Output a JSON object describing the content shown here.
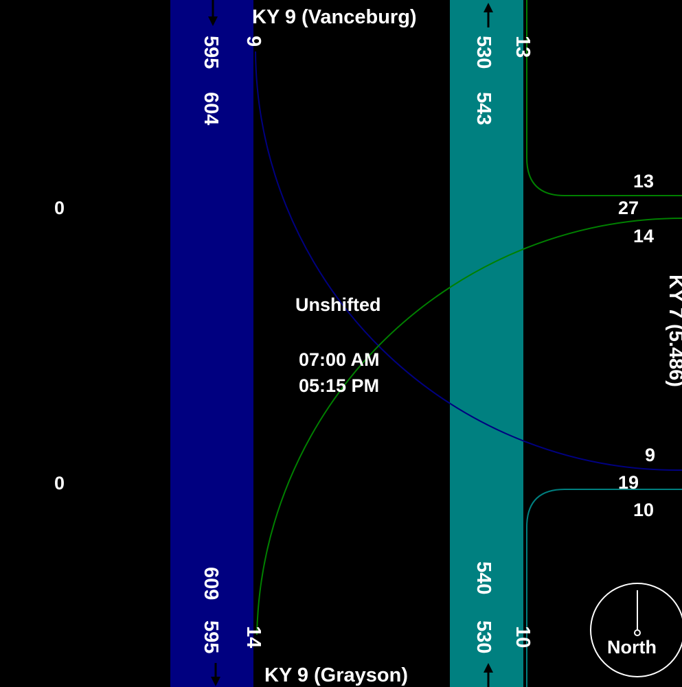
{
  "roads": {
    "north": "KY 9 (Vanceburg)",
    "south": "KY 9 (Grayson)",
    "east": "KY 7 (5.486)"
  },
  "center": {
    "mode": "Unshifted",
    "am_time": "07:00 AM",
    "pm_time": "05:15 PM"
  },
  "southbound_band": {
    "color": "#000080",
    "north_end": {
      "total_am": "595",
      "total_pm": "604",
      "right_turn": "9"
    },
    "south_end": {
      "total_am": "595",
      "total_pm": "609",
      "through_turn": "14"
    }
  },
  "northbound_band": {
    "color": "#008080",
    "north_end": {
      "total_am": "530",
      "total_pm": "543",
      "right_turn": "13"
    },
    "south_end": {
      "total_am": "530",
      "total_pm": "540",
      "right_turn": "10"
    }
  },
  "east_approach": {
    "upper": {
      "top": "13",
      "sum": "27",
      "bottom": "14"
    },
    "lower": {
      "top": "9",
      "sum": "19",
      "bottom": "10"
    }
  },
  "west_side": {
    "upper_value": "0",
    "lower_value": "0"
  },
  "compass": {
    "label": "North"
  },
  "colors": {
    "background": "#000000",
    "green_curve": "#008000",
    "blue_curve": "#000080",
    "teal_curve": "#008080",
    "text": "#ffffff"
  }
}
